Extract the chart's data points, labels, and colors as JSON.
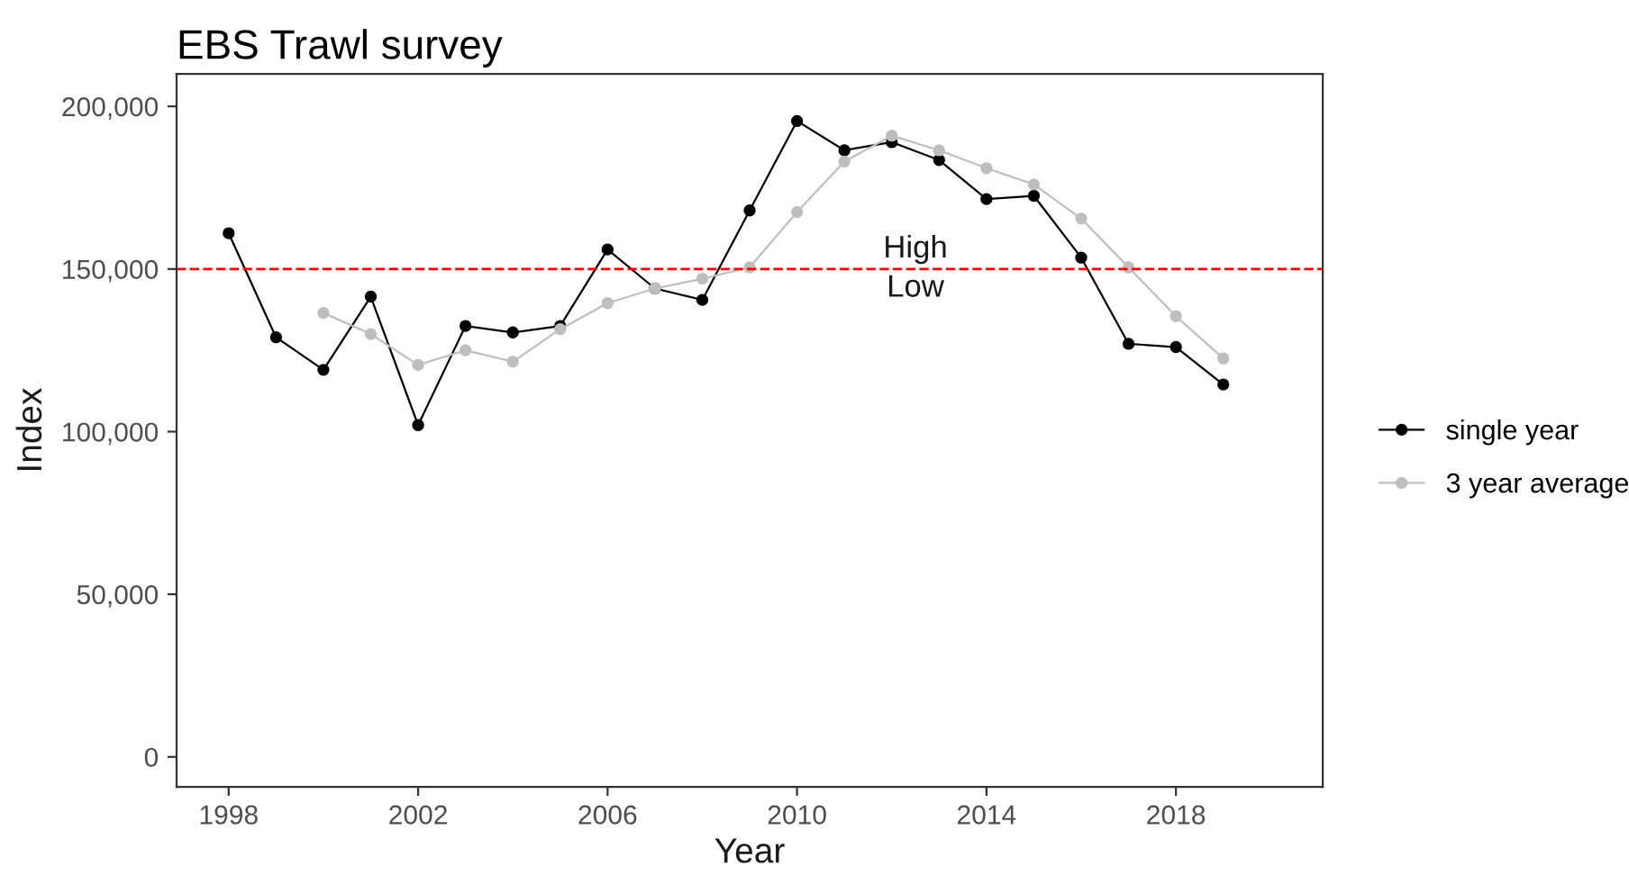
{
  "chart_data": {
    "type": "line",
    "title": "EBS Trawl survey",
    "xlabel": "Year",
    "ylabel": "Index",
    "x": [
      1998,
      1999,
      2000,
      2001,
      2002,
      2003,
      2004,
      2005,
      2006,
      2007,
      2008,
      2009,
      2010,
      2011,
      2012,
      2013,
      2014,
      2015,
      2016,
      2017,
      2018,
      2019
    ],
    "series": [
      {
        "name": "single year",
        "color": "#000000",
        "values": [
          161000,
          129000,
          119000,
          141500,
          102000,
          132500,
          130500,
          132500,
          156000,
          144000,
          140500,
          168000,
          195500,
          186500,
          189000,
          183500,
          171500,
          172500,
          153500,
          127000,
          126000,
          114500
        ]
      },
      {
        "name": "3 year average",
        "color": "#bebebe",
        "values": [
          null,
          null,
          136500,
          130000,
          120500,
          125000,
          121500,
          131500,
          139500,
          144000,
          147000,
          150500,
          167500,
          183000,
          191000,
          186500,
          181000,
          176000,
          165500,
          150500,
          135500,
          122500
        ]
      }
    ],
    "xlim": [
      1996.9,
      2021.1
    ],
    "xticks": [
      1998,
      2002,
      2006,
      2010,
      2014,
      2018
    ],
    "ylim": [
      -9200,
      210000
    ],
    "yticks": [
      {
        "value": 0,
        "label": "0"
      },
      {
        "value": 50000,
        "label": "50,000"
      },
      {
        "value": 100000,
        "label": "100,000"
      },
      {
        "value": 150000,
        "label": "150,000"
      },
      {
        "value": 200000,
        "label": "200,000"
      }
    ],
    "ref_lines": [
      {
        "axis": "y",
        "value": 150000,
        "color": "#ff0000",
        "line_style": "dashed"
      }
    ],
    "annotations": [
      {
        "text": "High",
        "x": 2012.5,
        "y": 150000
      },
      {
        "text": "Low",
        "x": 2012.5,
        "y": 150000
      }
    ],
    "marker": "circle",
    "line_style": "solid",
    "legend": "right"
  }
}
